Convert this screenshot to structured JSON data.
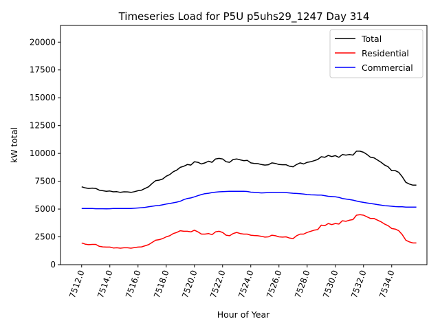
{
  "chart_data": {
    "type": "line",
    "title": "Timeseries Load for P5U p5uhs29_1247  Day 314",
    "xlabel": "Hour of Year",
    "ylabel": "kW total",
    "xlim": [
      7510.5,
      7536.5
    ],
    "ylim": [
      0,
      21500
    ],
    "xticks": [
      7512,
      7514,
      7516,
      7518,
      7520,
      7522,
      7524,
      7526,
      7528,
      7530,
      7532,
      7534
    ],
    "xtick_labels": [
      "7512.0",
      "7514.0",
      "7516.0",
      "7518.0",
      "7520.0",
      "7522.0",
      "7524.0",
      "7526.0",
      "7528.0",
      "7530.0",
      "7532.0",
      "7534.0"
    ],
    "yticks": [
      0,
      2500,
      5000,
      7500,
      10000,
      12500,
      15000,
      17500,
      20000
    ],
    "ytick_labels": [
      "0",
      "2500",
      "5000",
      "7500",
      "10000",
      "12500",
      "15000",
      "17500",
      "20000"
    ],
    "grid": false,
    "legend_position": "top-right",
    "x": [
      7512.0,
      7512.25,
      7512.5,
      7512.75,
      7513.0,
      7513.25,
      7513.5,
      7513.75,
      7514.0,
      7514.25,
      7514.5,
      7514.75,
      7515.0,
      7515.25,
      7515.5,
      7515.75,
      7516.0,
      7516.25,
      7516.5,
      7516.75,
      7517.0,
      7517.25,
      7517.5,
      7517.75,
      7518.0,
      7518.25,
      7518.5,
      7518.75,
      7519.0,
      7519.25,
      7519.5,
      7519.75,
      7520.0,
      7520.25,
      7520.5,
      7520.75,
      7521.0,
      7521.25,
      7521.5,
      7521.75,
      7522.0,
      7522.25,
      7522.5,
      7522.75,
      7523.0,
      7523.25,
      7523.5,
      7523.75,
      7524.0,
      7524.25,
      7524.5,
      7524.75,
      7525.0,
      7525.25,
      7525.5,
      7525.75,
      7526.0,
      7526.25,
      7526.5,
      7526.75,
      7527.0,
      7527.25,
      7527.5,
      7527.75,
      7528.0,
      7528.25,
      7528.5,
      7528.75,
      7529.0,
      7529.25,
      7529.5,
      7529.75,
      7530.0,
      7530.25,
      7530.5,
      7530.75,
      7531.0,
      7531.25,
      7531.5,
      7531.75,
      7532.0,
      7532.25,
      7532.5,
      7532.75,
      7533.0,
      7533.25,
      7533.5,
      7533.75,
      7534.0,
      7534.25,
      7534.5,
      7534.75,
      7535.0,
      7535.25,
      7535.5,
      7535.75
    ],
    "series": [
      {
        "name": "Total",
        "color": "#000000",
        "values": [
          7000,
          6900,
          6850,
          6880,
          6850,
          6700,
          6650,
          6600,
          6620,
          6550,
          6560,
          6500,
          6550,
          6540,
          6500,
          6560,
          6650,
          6700,
          6850,
          7000,
          7300,
          7550,
          7600,
          7700,
          7950,
          8100,
          8350,
          8500,
          8750,
          8850,
          9000,
          8950,
          9250,
          9200,
          9050,
          9150,
          9300,
          9200,
          9500,
          9550,
          9500,
          9250,
          9200,
          9450,
          9500,
          9420,
          9350,
          9380,
          9150,
          9100,
          9080,
          9000,
          8950,
          8980,
          9150,
          9100,
          9000,
          8980,
          8980,
          8850,
          8800,
          9000,
          9150,
          9050,
          9200,
          9250,
          9350,
          9450,
          9700,
          9650,
          9820,
          9720,
          9800,
          9650,
          9900,
          9850,
          9900,
          9850,
          10200,
          10200,
          10100,
          9900,
          9650,
          9600,
          9400,
          9200,
          8950,
          8800,
          8450,
          8450,
          8300,
          7900,
          7400,
          7250,
          7150,
          7150
        ]
      },
      {
        "name": "Residential",
        "color": "#ff0000",
        "values": [
          1950,
          1850,
          1800,
          1820,
          1820,
          1650,
          1600,
          1580,
          1580,
          1500,
          1520,
          1480,
          1520,
          1520,
          1480,
          1540,
          1580,
          1600,
          1700,
          1800,
          2000,
          2200,
          2250,
          2350,
          2500,
          2600,
          2800,
          2900,
          3050,
          3000,
          3000,
          2950,
          3100,
          2950,
          2750,
          2750,
          2800,
          2700,
          2950,
          3000,
          2900,
          2650,
          2600,
          2800,
          2900,
          2800,
          2750,
          2750,
          2650,
          2620,
          2600,
          2550,
          2480,
          2500,
          2650,
          2600,
          2500,
          2480,
          2500,
          2400,
          2350,
          2600,
          2750,
          2750,
          2900,
          3000,
          3100,
          3150,
          3550,
          3500,
          3700,
          3600,
          3700,
          3650,
          3950,
          3900,
          4000,
          4050,
          4450,
          4500,
          4450,
          4300,
          4150,
          4150,
          4000,
          3850,
          3650,
          3500,
          3250,
          3200,
          3050,
          2700,
          2200,
          2050,
          1950,
          1950
        ]
      },
      {
        "name": "Commercial",
        "color": "#0000ff",
        "values": [
          5050,
          5050,
          5050,
          5050,
          5030,
          5030,
          5030,
          5020,
          5030,
          5050,
          5050,
          5050,
          5050,
          5050,
          5050,
          5070,
          5100,
          5120,
          5150,
          5200,
          5250,
          5300,
          5320,
          5380,
          5450,
          5500,
          5560,
          5620,
          5700,
          5850,
          5950,
          6000,
          6100,
          6200,
          6300,
          6380,
          6420,
          6480,
          6520,
          6550,
          6560,
          6580,
          6600,
          6600,
          6600,
          6600,
          6600,
          6580,
          6520,
          6500,
          6480,
          6450,
          6460,
          6480,
          6500,
          6500,
          6500,
          6500,
          6480,
          6450,
          6420,
          6400,
          6380,
          6350,
          6300,
          6280,
          6270,
          6260,
          6250,
          6200,
          6150,
          6120,
          6100,
          6050,
          5950,
          5900,
          5850,
          5800,
          5720,
          5650,
          5600,
          5550,
          5500,
          5450,
          5400,
          5350,
          5300,
          5280,
          5250,
          5220,
          5200,
          5200,
          5180,
          5170,
          5170,
          5170
        ]
      }
    ]
  }
}
